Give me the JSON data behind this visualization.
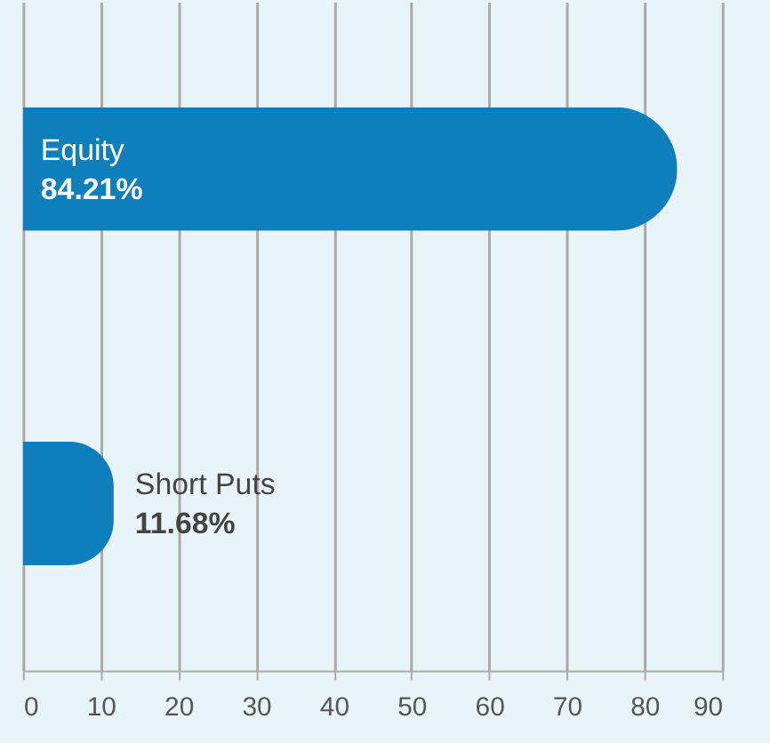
{
  "chart_data": {
    "type": "bar",
    "orientation": "horizontal",
    "categories": [
      "Equity",
      "Short Puts"
    ],
    "values": [
      84.21,
      11.68
    ],
    "colors": [
      "#0e7fba",
      "#0e7fba"
    ],
    "value_labels": [
      "84.21%",
      "11.68%"
    ],
    "xlim": [
      0,
      90
    ],
    "xticks": [
      0,
      10,
      20,
      30,
      40,
      50,
      60,
      70,
      80,
      90
    ],
    "grid": "x",
    "tick_labels": "x"
  }
}
